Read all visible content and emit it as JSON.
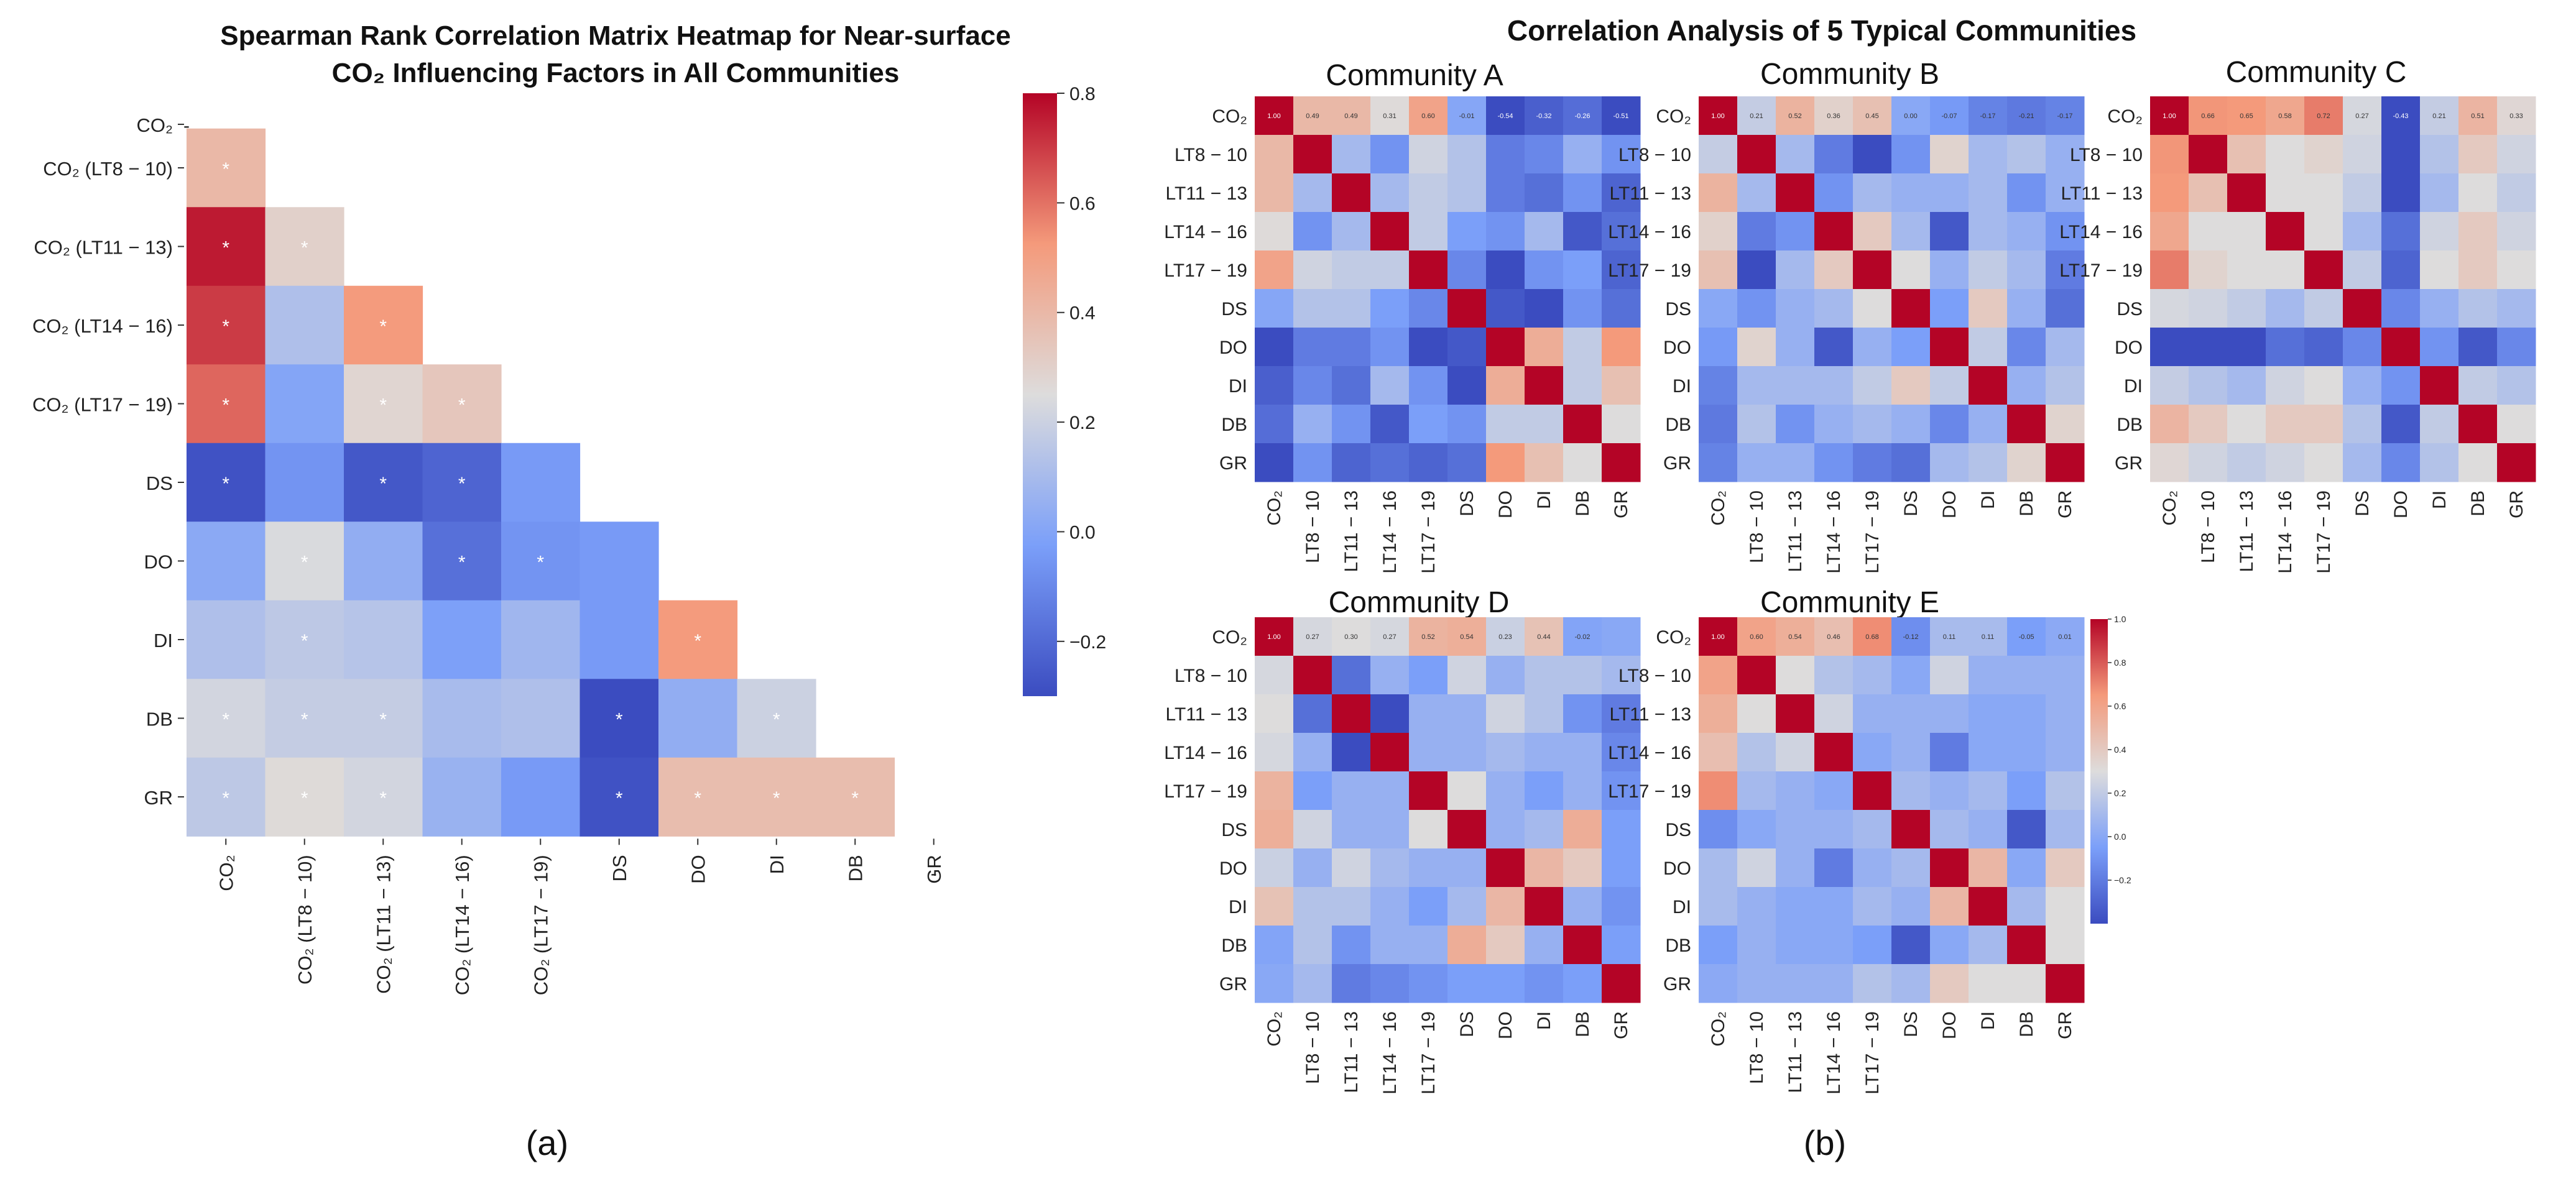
{
  "chart_data": [
    {
      "panel": "a",
      "type": "heatmap",
      "triangle": "lower",
      "title_line1": "Spearman Rank Correlation Matrix Heatmap for Near-surface",
      "title_line2": "CO₂ Influencing Factors in All Communities",
      "row_labels": [
        "CO₂",
        "CO₂ (LT8 − 10)",
        "CO₂ (LT11 − 13)",
        "CO₂ (LT14 − 16)",
        "CO₂ (LT17 − 19)",
        "DS",
        "DO",
        "DI",
        "DB",
        "GR"
      ],
      "col_labels": [
        "CO₂",
        "CO₂ (LT8 − 10)",
        "CO₂ (LT11 − 13)",
        "CO₂ (LT14 − 16)",
        "CO₂ (LT17 − 19)",
        "DS",
        "DO",
        "DI",
        "DB",
        "GR"
      ],
      "diagonal_label": "-",
      "significance_marker": "*",
      "values": [
        [
          1.0
        ],
        [
          0.4,
          1.0
        ],
        [
          0.76,
          0.3,
          1.0
        ],
        [
          0.7,
          0.12,
          0.52,
          1.0
        ],
        [
          0.62,
          0.0,
          0.28,
          0.34,
          1.0
        ],
        [
          -0.28,
          -0.06,
          -0.26,
          -0.22,
          -0.04,
          1.0
        ],
        [
          0.02,
          0.24,
          0.04,
          -0.18,
          -0.06,
          -0.04,
          1.0
        ],
        [
          0.12,
          0.16,
          0.14,
          -0.02,
          0.08,
          -0.04,
          0.52,
          1.0
        ],
        [
          0.22,
          0.18,
          0.18,
          0.1,
          0.12,
          -0.3,
          0.04,
          0.2,
          1.0
        ],
        [
          0.16,
          0.26,
          0.22,
          0.06,
          -0.04,
          -0.28,
          0.38,
          0.38,
          0.38,
          1.0
        ]
      ],
      "significant": [
        [],
        [
          true
        ],
        [
          true,
          true
        ],
        [
          true,
          false,
          true
        ],
        [
          true,
          false,
          true,
          true
        ],
        [
          true,
          false,
          true,
          true,
          false
        ],
        [
          false,
          true,
          false,
          true,
          true,
          false
        ],
        [
          false,
          true,
          false,
          false,
          false,
          false,
          true
        ],
        [
          true,
          true,
          true,
          false,
          false,
          true,
          false,
          true
        ],
        [
          true,
          true,
          true,
          false,
          false,
          true,
          true,
          true,
          true
        ]
      ],
      "colorbar": {
        "min": -0.3,
        "max": 0.8,
        "ticks": [
          "0.8",
          "0.6",
          "0.4",
          "0.2",
          "0.0",
          "−0.2"
        ],
        "tick_values": [
          0.8,
          0.6,
          0.4,
          0.2,
          0.0,
          -0.2
        ]
      },
      "panel_label": "(a)"
    },
    {
      "panel": "b",
      "type": "heatmap",
      "title": "Correlation Analysis of 5 Typical Communities",
      "labels": [
        "CO₂",
        "LT8 − 10",
        "LT11 − 13",
        "LT14 − 16",
        "LT17 − 19",
        "DS",
        "DO",
        "DI",
        "DB",
        "GR"
      ],
      "panel_label": "(b)",
      "colorbar": {
        "min": -0.4,
        "max": 1.0,
        "ticks": [
          "1.0",
          "0.8",
          "0.6",
          "0.4",
          "0.2",
          "0.0",
          "−0.2"
        ],
        "tick_values": [
          1.0,
          0.8,
          0.6,
          0.4,
          0.2,
          0.0,
          -0.2
        ]
      },
      "communities": [
        {
          "name": "Community A",
          "co2_row_labels": [
            "1.00",
            "0.49",
            "0.49",
            "0.31",
            "0.60",
            "-0.01",
            "-0.54",
            "-0.32",
            "-0.26",
            "-0.51"
          ],
          "values": [
            [
              1.0,
              0.49,
              0.49,
              0.31,
              0.6,
              -0.01,
              -0.54,
              -0.32,
              -0.26,
              -0.51
            ],
            [
              0.49,
              1.0,
              0.1,
              -0.1,
              0.25,
              0.15,
              -0.2,
              -0.15,
              0.05,
              -0.1
            ],
            [
              0.49,
              0.1,
              1.0,
              0.1,
              0.2,
              0.15,
              -0.2,
              -0.25,
              -0.1,
              -0.3
            ],
            [
              0.31,
              -0.1,
              0.1,
              1.0,
              0.2,
              -0.05,
              -0.1,
              0.1,
              -0.35,
              -0.25
            ],
            [
              0.6,
              0.25,
              0.2,
              0.2,
              1.0,
              -0.15,
              -0.4,
              -0.1,
              -0.05,
              -0.3
            ],
            [
              -0.01,
              0.15,
              0.15,
              -0.05,
              -0.15,
              1.0,
              -0.35,
              -0.45,
              -0.1,
              -0.25
            ],
            [
              -0.54,
              -0.2,
              -0.2,
              -0.1,
              -0.4,
              -0.35,
              1.0,
              0.55,
              0.2,
              0.65
            ],
            [
              -0.32,
              -0.15,
              -0.25,
              0.1,
              -0.1,
              -0.45,
              0.55,
              1.0,
              0.2,
              0.45
            ],
            [
              -0.26,
              0.05,
              -0.1,
              -0.35,
              -0.05,
              -0.1,
              0.2,
              0.2,
              1.0,
              0.3
            ],
            [
              -0.51,
              -0.1,
              -0.3,
              -0.25,
              -0.3,
              -0.25,
              0.65,
              0.45,
              0.3,
              1.0
            ]
          ]
        },
        {
          "name": "Community B",
          "co2_row_labels": [
            "1.00",
            "0.21",
            "0.52",
            "0.36",
            "0.45",
            "0.00",
            "-0.07",
            "-0.17",
            "-0.21",
            "-0.17"
          ],
          "values": [
            [
              1.0,
              0.21,
              0.52,
              0.36,
              0.45,
              0.0,
              -0.07,
              -0.17,
              -0.21,
              -0.17
            ],
            [
              0.21,
              1.0,
              0.1,
              -0.2,
              -0.4,
              -0.1,
              0.35,
              0.1,
              0.15,
              0.05
            ],
            [
              0.52,
              0.1,
              1.0,
              -0.1,
              0.1,
              0.05,
              0.05,
              0.1,
              -0.1,
              0.05
            ],
            [
              0.36,
              -0.2,
              -0.1,
              1.0,
              0.4,
              0.1,
              -0.35,
              0.1,
              0.05,
              -0.1
            ],
            [
              0.45,
              -0.4,
              0.1,
              0.4,
              1.0,
              0.3,
              0.05,
              0.2,
              0.1,
              -0.2
            ],
            [
              0.0,
              -0.1,
              0.05,
              0.1,
              0.3,
              1.0,
              -0.05,
              0.4,
              0.05,
              -0.25
            ],
            [
              -0.07,
              0.35,
              0.05,
              -0.35,
              0.05,
              -0.05,
              1.0,
              0.2,
              -0.15,
              0.1
            ],
            [
              -0.17,
              0.1,
              0.1,
              0.1,
              0.2,
              0.4,
              0.2,
              1.0,
              0.05,
              0.15
            ],
            [
              -0.21,
              0.15,
              -0.1,
              0.05,
              0.1,
              0.05,
              -0.15,
              0.05,
              1.0,
              0.35
            ],
            [
              -0.17,
              0.05,
              0.05,
              -0.1,
              -0.2,
              -0.25,
              0.1,
              0.15,
              0.35,
              1.0
            ]
          ]
        },
        {
          "name": "Community C",
          "co2_row_labels": [
            "1.00",
            "0.66",
            "0.65",
            "0.58",
            "0.72",
            "0.27",
            "-0.43",
            "0.21",
            "0.51",
            "0.33"
          ],
          "values": [
            [
              1.0,
              0.66,
              0.65,
              0.58,
              0.72,
              0.27,
              -0.43,
              0.21,
              0.51,
              0.33
            ],
            [
              0.66,
              1.0,
              0.45,
              0.3,
              0.35,
              0.25,
              -0.4,
              0.15,
              0.4,
              0.25
            ],
            [
              0.65,
              0.45,
              1.0,
              0.3,
              0.3,
              0.2,
              -0.4,
              0.1,
              0.3,
              0.2
            ],
            [
              0.58,
              0.3,
              0.3,
              1.0,
              0.3,
              0.1,
              -0.25,
              0.25,
              0.4,
              0.25
            ],
            [
              0.72,
              0.35,
              0.3,
              0.3,
              1.0,
              0.2,
              -0.3,
              0.3,
              0.4,
              0.3
            ],
            [
              0.27,
              0.25,
              0.2,
              0.1,
              0.2,
              1.0,
              -0.15,
              0.05,
              0.15,
              0.1
            ],
            [
              -0.43,
              -0.4,
              -0.4,
              -0.25,
              -0.3,
              -0.15,
              1.0,
              -0.1,
              -0.35,
              -0.15
            ],
            [
              0.21,
              0.15,
              0.1,
              0.25,
              0.3,
              0.05,
              -0.1,
              1.0,
              0.2,
              0.15
            ],
            [
              0.51,
              0.4,
              0.3,
              0.4,
              0.4,
              0.15,
              -0.35,
              0.2,
              1.0,
              0.3
            ],
            [
              0.33,
              0.25,
              0.2,
              0.25,
              0.3,
              0.1,
              -0.15,
              0.15,
              0.3,
              1.0
            ]
          ]
        },
        {
          "name": "Community D",
          "co2_row_labels": [
            "1.00",
            "0.27",
            "0.30",
            "0.27",
            "0.52",
            "0.54",
            "0.23",
            "0.44",
            "-0.02",
            ""
          ],
          "values": [
            [
              1.0,
              0.27,
              0.3,
              0.27,
              0.52,
              0.54,
              0.23,
              0.44,
              -0.02,
              0.0
            ],
            [
              0.27,
              1.0,
              -0.25,
              0.05,
              -0.05,
              0.25,
              0.05,
              0.15,
              0.15,
              0.1
            ],
            [
              0.3,
              -0.25,
              1.0,
              -0.4,
              0.05,
              0.05,
              0.25,
              0.15,
              -0.1,
              -0.2
            ],
            [
              0.27,
              0.05,
              -0.4,
              1.0,
              0.05,
              0.05,
              0.1,
              0.05,
              0.05,
              -0.15
            ],
            [
              0.52,
              -0.05,
              0.05,
              0.05,
              1.0,
              0.3,
              0.05,
              -0.05,
              0.05,
              -0.1
            ],
            [
              0.54,
              0.25,
              0.05,
              0.05,
              0.3,
              1.0,
              0.05,
              0.1,
              0.55,
              -0.05
            ],
            [
              0.23,
              0.05,
              0.25,
              0.1,
              0.05,
              0.05,
              1.0,
              0.5,
              0.4,
              -0.05
            ],
            [
              0.44,
              0.15,
              0.15,
              0.05,
              -0.05,
              0.1,
              0.5,
              1.0,
              0.05,
              -0.1
            ],
            [
              -0.02,
              0.15,
              -0.1,
              0.05,
              0.05,
              0.55,
              0.4,
              0.05,
              1.0,
              -0.05
            ],
            [
              0.0,
              0.1,
              -0.2,
              -0.15,
              -0.1,
              -0.05,
              -0.05,
              -0.1,
              -0.05,
              1.0
            ]
          ]
        },
        {
          "name": "Community E",
          "co2_row_labels": [
            "1.00",
            "0.60",
            "0.54",
            "0.46",
            "0.68",
            "-0.12",
            "0.11",
            "0.11",
            "-0.05",
            "0.01"
          ],
          "values": [
            [
              1.0,
              0.6,
              0.54,
              0.46,
              0.68,
              -0.12,
              0.11,
              0.11,
              -0.05,
              0.01
            ],
            [
              0.6,
              1.0,
              0.3,
              0.15,
              0.1,
              0.0,
              0.25,
              0.05,
              0.05,
              0.05
            ],
            [
              0.54,
              0.3,
              1.0,
              0.25,
              0.05,
              0.05,
              0.05,
              0.0,
              0.0,
              0.05
            ],
            [
              0.46,
              0.15,
              0.25,
              1.0,
              0.0,
              0.05,
              -0.2,
              0.0,
              0.0,
              0.05
            ],
            [
              0.68,
              0.1,
              0.05,
              0.0,
              1.0,
              0.1,
              0.05,
              0.1,
              -0.05,
              0.15
            ],
            [
              -0.12,
              0.0,
              0.05,
              0.05,
              0.1,
              1.0,
              0.1,
              0.05,
              -0.35,
              0.1
            ],
            [
              0.11,
              0.25,
              0.05,
              -0.2,
              0.05,
              0.1,
              1.0,
              0.5,
              0.0,
              0.4
            ],
            [
              0.11,
              0.05,
              0.0,
              0.0,
              0.1,
              0.05,
              0.5,
              1.0,
              0.1,
              0.3
            ],
            [
              -0.05,
              0.05,
              0.0,
              0.0,
              -0.05,
              -0.35,
              0.0,
              0.1,
              1.0,
              0.3
            ],
            [
              0.01,
              0.05,
              0.05,
              0.05,
              0.15,
              0.1,
              0.4,
              0.3,
              0.3,
              1.0
            ]
          ]
        }
      ]
    }
  ]
}
